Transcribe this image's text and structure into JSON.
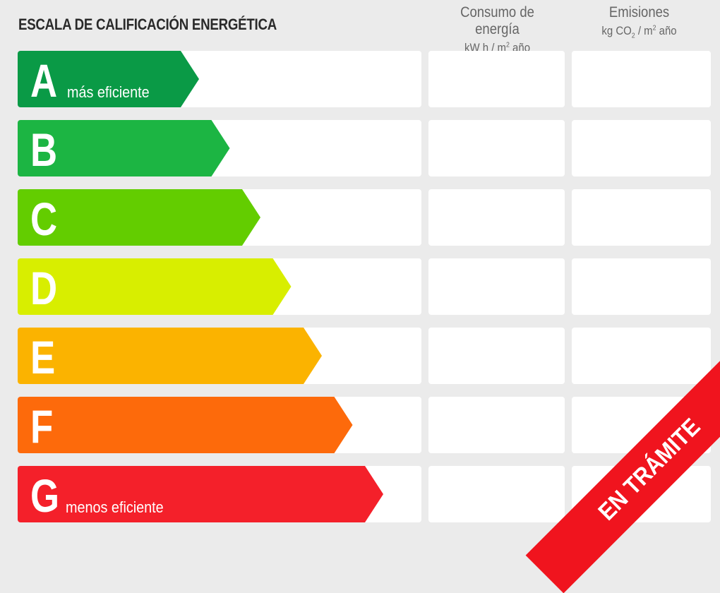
{
  "title": "ESCALA DE CALIFICACIÓN ENERGÉTICA",
  "columns": [
    {
      "title": "Consumo de energía",
      "unit_prefix": "kW h / m",
      "unit_sup": "2",
      "unit_suffix": " año"
    },
    {
      "title": "Emisiones",
      "unit_prefix": "kg CO",
      "unit_sub": "2",
      "unit_mid": " / m",
      "unit_sup": "2",
      "unit_suffix": " año"
    }
  ],
  "ratings": [
    {
      "letter": "A",
      "label": "más eficiente",
      "color": "#0a9a46"
    },
    {
      "letter": "B",
      "label": "",
      "color": "#1cb543"
    },
    {
      "letter": "C",
      "label": "",
      "color": "#63cd00"
    },
    {
      "letter": "D",
      "label": "",
      "color": "#d8ee00"
    },
    {
      "letter": "E",
      "label": "",
      "color": "#fbb300"
    },
    {
      "letter": "F",
      "label": "",
      "color": "#fd6a0b"
    },
    {
      "letter": "G",
      "label": "menos eficiente",
      "color": "#f4202a"
    }
  ],
  "banner": {
    "text": "EN TRÁMITE",
    "color": "#f0141e"
  }
}
